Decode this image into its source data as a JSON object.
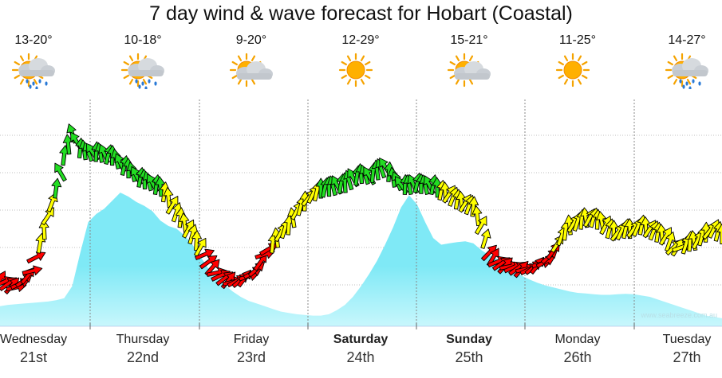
{
  "title": "7 day wind & wave forecast for Hobart (Coastal)",
  "credit": "www.seabreeze.com.au",
  "days": [
    {
      "name": "Wednesday",
      "date": "21st",
      "temp": "13-20°",
      "icon": "rain-sun-icon",
      "bold": false
    },
    {
      "name": "Thursday",
      "date": "22nd",
      "temp": "10-18°",
      "icon": "rain-sun-icon",
      "bold": false
    },
    {
      "name": "Friday",
      "date": "23rd",
      "temp": "9-20°",
      "icon": "cloud-sun-icon",
      "bold": false
    },
    {
      "name": "Saturday",
      "date": "24th",
      "temp": "12-29°",
      "icon": "sun-icon",
      "bold": true
    },
    {
      "name": "Sunday",
      "date": "25th",
      "temp": "15-21°",
      "icon": "cloud-sun-icon",
      "bold": true
    },
    {
      "name": "Monday",
      "date": "26th",
      "temp": "11-25°",
      "icon": "sun-icon",
      "bold": false
    },
    {
      "name": "Tuesday",
      "date": "27th",
      "temp": "14-27°",
      "icon": "rain-sun-icon",
      "bold": false
    }
  ],
  "colors": {
    "wave_fill": "#7fe9f6",
    "wave_light": "#c8f7fc",
    "wind_light": "#ff0000",
    "wind_moderate": "#ffff00",
    "wind_strong": "#22dd22",
    "divider": "#888888",
    "grid": "#aaaaaa"
  },
  "chart_data": {
    "type": "area",
    "x": [
      0,
      10,
      20,
      30,
      40,
      50,
      60,
      70,
      80,
      90,
      100,
      110,
      120,
      130,
      140,
      150,
      160,
      170,
      180,
      190,
      200,
      210,
      220,
      230,
      240,
      250,
      260,
      270,
      280,
      290,
      300,
      310,
      320,
      330,
      340,
      350,
      360,
      370,
      380,
      390,
      400,
      410,
      420,
      430,
      440,
      450,
      460,
      470,
      480,
      490,
      500,
      510,
      520,
      530,
      540,
      550,
      560,
      570,
      580,
      590,
      600,
      610,
      620,
      630,
      640,
      650,
      660,
      670,
      680,
      690,
      700,
      710,
      720,
      730,
      740,
      750,
      760,
      770,
      780,
      790,
      800,
      810,
      820,
      830,
      840,
      850,
      860,
      870,
      880,
      890,
      900
    ],
    "series": [
      {
        "kind": "wave",
        "values": [
          15,
          16,
          16.5,
          17,
          17.5,
          18,
          18.5,
          19.5,
          21,
          30,
          55,
          78,
          84,
          88,
          94,
          100,
          97,
          93,
          90,
          86,
          79,
          75,
          73,
          68,
          61,
          52,
          43,
          36,
          31,
          26,
          22,
          19,
          17,
          15,
          13,
          11,
          10,
          9,
          8.5,
          8,
          8,
          9,
          12,
          16,
          22,
          30,
          39,
          49,
          61,
          74,
          89,
          98,
          91,
          78,
          66,
          61,
          62,
          63,
          63.5,
          62,
          57,
          53,
          50,
          46,
          41,
          38,
          35,
          32.5,
          30.5,
          29,
          27.5,
          26,
          25,
          24.5,
          24,
          23.5,
          23.5,
          24,
          24.2,
          24,
          23,
          22,
          20,
          18,
          16,
          14,
          12,
          10,
          8,
          7,
          6
        ]
      },
      {
        "kind": "wind",
        "values": [
          10,
          8,
          6,
          10,
          15,
          30,
          45,
          60,
          78,
          90,
          82,
          80,
          80,
          79,
          78,
          74,
          71,
          67,
          65,
          63,
          61,
          55,
          47,
          41,
          35,
          28,
          20,
          14,
          11,
          9,
          10,
          12,
          16,
          24,
          30,
          36,
          40,
          48,
          53,
          57,
          60,
          61,
          62,
          63,
          66,
          68,
          67,
          70,
          72,
          66,
          62,
          62,
          63,
          62,
          62,
          59,
          57,
          54,
          52,
          50,
          40,
          25,
          20,
          18,
          17,
          16,
          16,
          18,
          20,
          26,
          34,
          40,
          42,
          44,
          44,
          42,
          38,
          36,
          38,
          38,
          40,
          38,
          36,
          34,
          28,
          28,
          31,
          32,
          36,
          38,
          35
        ]
      }
    ],
    "categories": [
      "Wednesday 21st",
      "Thursday 22nd",
      "Friday 23rd",
      "Saturday 24th",
      "Sunday 25th",
      "Monday 26th",
      "Tuesday 27th"
    ],
    "grid": true
  }
}
